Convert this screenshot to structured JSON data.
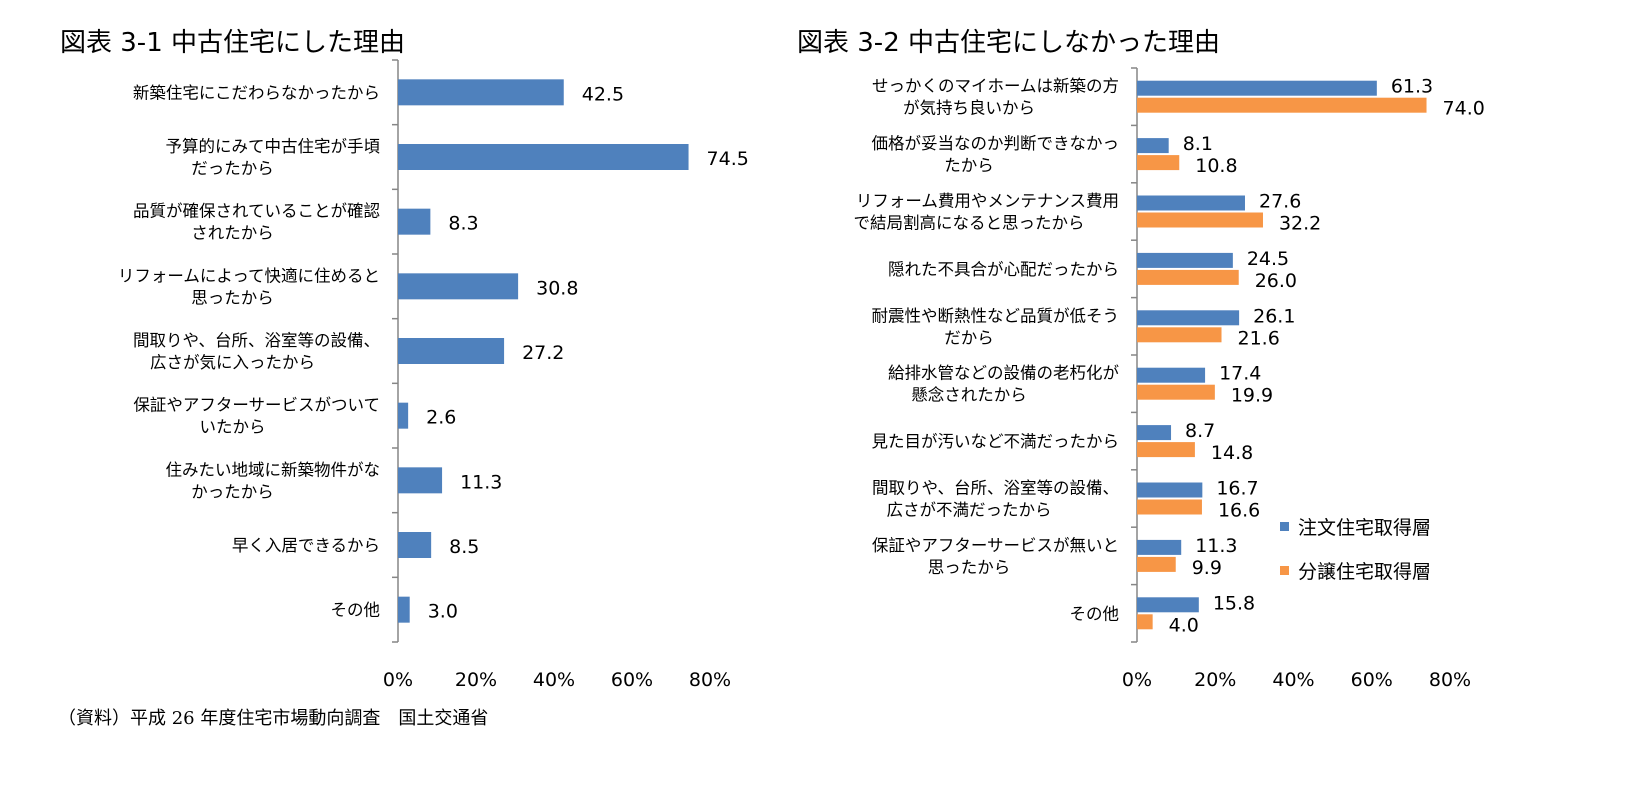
{
  "chart_data": [
    {
      "type": "bar",
      "orientation": "horizontal",
      "title": "図表 3-1  中古住宅にした理由",
      "categories": [
        [
          "新築住宅にこだわらなかったから"
        ],
        [
          "予算的にみて中古住宅が手頃",
          "だったから"
        ],
        [
          "品質が確保されていることが確認",
          "されたから"
        ],
        [
          "リフォームによって快適に住めると",
          "思ったから"
        ],
        [
          "間取りや、台所、浴室等の設備、",
          "広さが気に入ったから"
        ],
        [
          "保証やアフターサービスがついて",
          "いたから"
        ],
        [
          "住みたい地域に新築物件がな",
          "かったから"
        ],
        [
          "早く入居できるから"
        ],
        [
          "その他"
        ]
      ],
      "values": [
        42.5,
        74.5,
        8.3,
        30.8,
        27.2,
        2.6,
        11.3,
        8.5,
        3.0
      ],
      "xlim": [
        0,
        80
      ],
      "xticks": [
        "0%",
        "20%",
        "40%",
        "60%",
        "80%"
      ],
      "colors": [
        "#4f81bd"
      ]
    },
    {
      "type": "bar",
      "orientation": "horizontal",
      "title": "図表 3-2  中古住宅にしなかった理由",
      "categories": [
        [
          "せっかくのマイホームは新築の方",
          "が気持ち良いから"
        ],
        [
          "価格が妥当なのか判断できなかっ",
          "たから"
        ],
        [
          "リフォーム費用やメンテナンス費用",
          "で結局割高になると思ったから"
        ],
        [
          "隠れた不具合が心配だったから"
        ],
        [
          "耐震性や断熱性など品質が低そう",
          "だから"
        ],
        [
          "給排水管などの設備の老朽化が",
          "懸念されたから"
        ],
        [
          "見た目が汚いなど不満だったから"
        ],
        [
          "間取りや、台所、浴室等の設備、",
          "広さが不満だったから"
        ],
        [
          "保証やアフターサービスが無いと",
          "思ったから"
        ],
        [
          "その他"
        ]
      ],
      "series": [
        {
          "name": "注文住宅取得層",
          "color": "#4f81bd",
          "values": [
            61.3,
            8.1,
            27.6,
            24.5,
            26.1,
            17.4,
            8.7,
            16.7,
            11.3,
            15.8
          ]
        },
        {
          "name": "分譲住宅取得層",
          "color": "#f79646",
          "values": [
            74.0,
            10.8,
            32.2,
            26.0,
            21.6,
            19.9,
            14.8,
            16.6,
            9.9,
            4.0
          ]
        }
      ],
      "xlim": [
        0,
        80
      ],
      "xticks": [
        "0%",
        "20%",
        "40%",
        "60%",
        "80%"
      ],
      "legend": "bottom-right"
    }
  ],
  "footer": "（資料）平成 26 年度住宅市場動向調査　国土交通省"
}
